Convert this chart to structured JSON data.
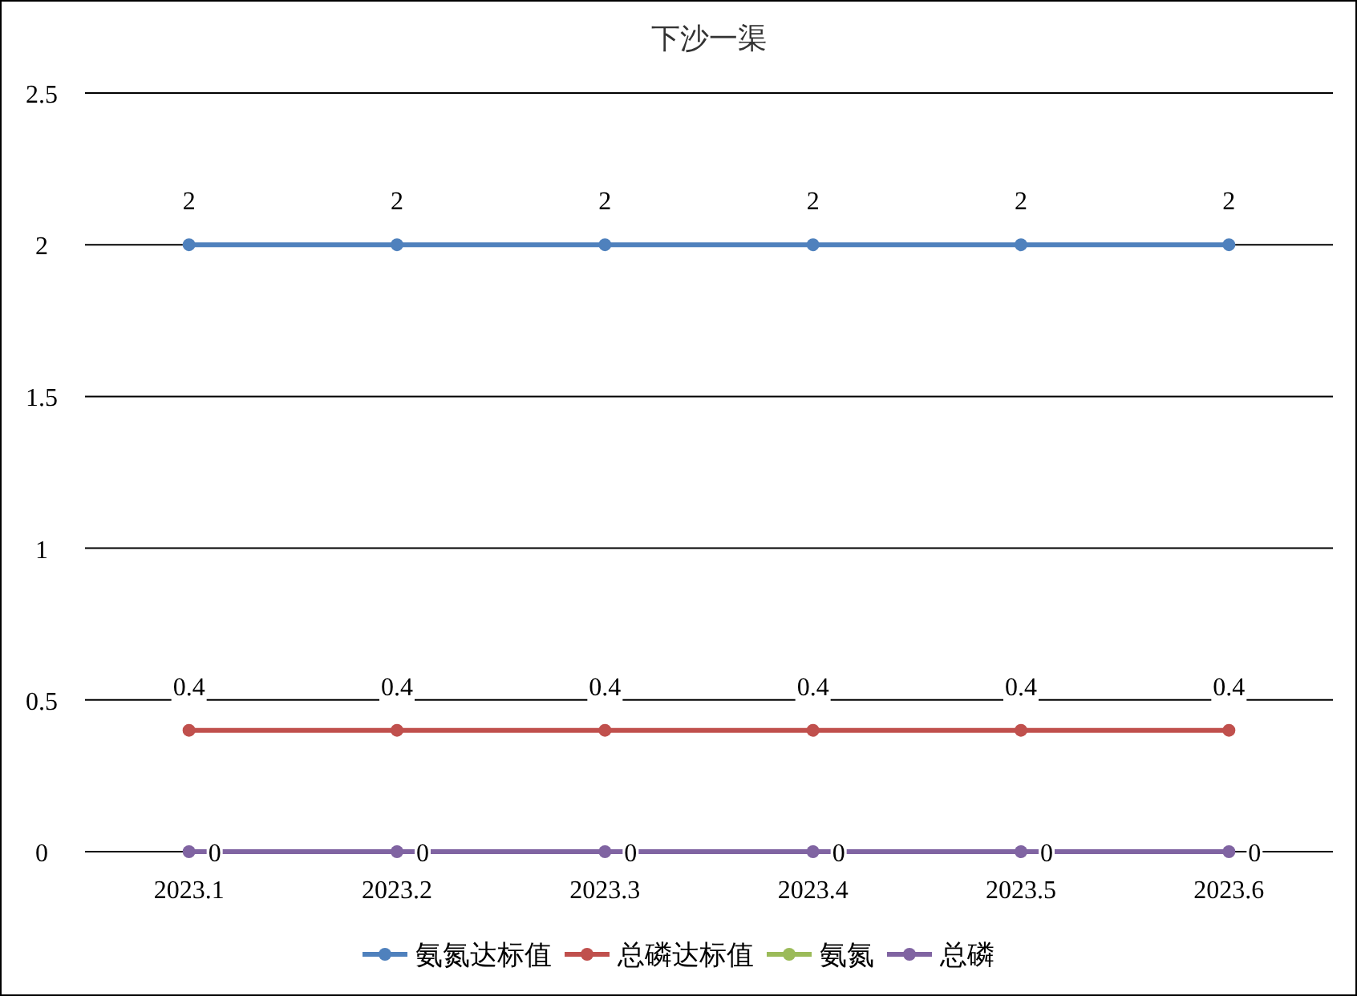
{
  "chart_data": {
    "type": "line",
    "title": "下沙一渠",
    "categories": [
      "2023.1",
      "2023.2",
      "2023.3",
      "2023.4",
      "2023.5",
      "2023.6"
    ],
    "series": [
      {
        "name": "氨氮达标值",
        "color": "#4f81bd",
        "values": [
          2,
          2,
          2,
          2,
          2,
          2
        ],
        "value_labels": [
          "2",
          "2",
          "2",
          "2",
          "2",
          "2"
        ]
      },
      {
        "name": "总磷达标值",
        "color": "#c0504d",
        "values": [
          0.4,
          0.4,
          0.4,
          0.4,
          0.4,
          0.4
        ],
        "value_labels": [
          "0.4",
          "0.4",
          "0.4",
          "0.4",
          "0.4",
          "0.4"
        ]
      },
      {
        "name": "氨氮",
        "color": "#9bbb59",
        "values": [
          null,
          null,
          null,
          null,
          null,
          null
        ]
      },
      {
        "name": "总磷",
        "color": "#8064a2",
        "values": [
          0,
          0,
          0,
          0,
          0,
          0
        ],
        "value_labels": [
          "0",
          "0",
          "0",
          "0",
          "0",
          "0"
        ]
      }
    ],
    "ylim": [
      0,
      2.5
    ],
    "yticks": [
      0,
      0.5,
      1,
      1.5,
      2,
      2.5
    ],
    "grid": "y",
    "legend": "bottom",
    "marker": "circle",
    "line_style": "solid"
  }
}
